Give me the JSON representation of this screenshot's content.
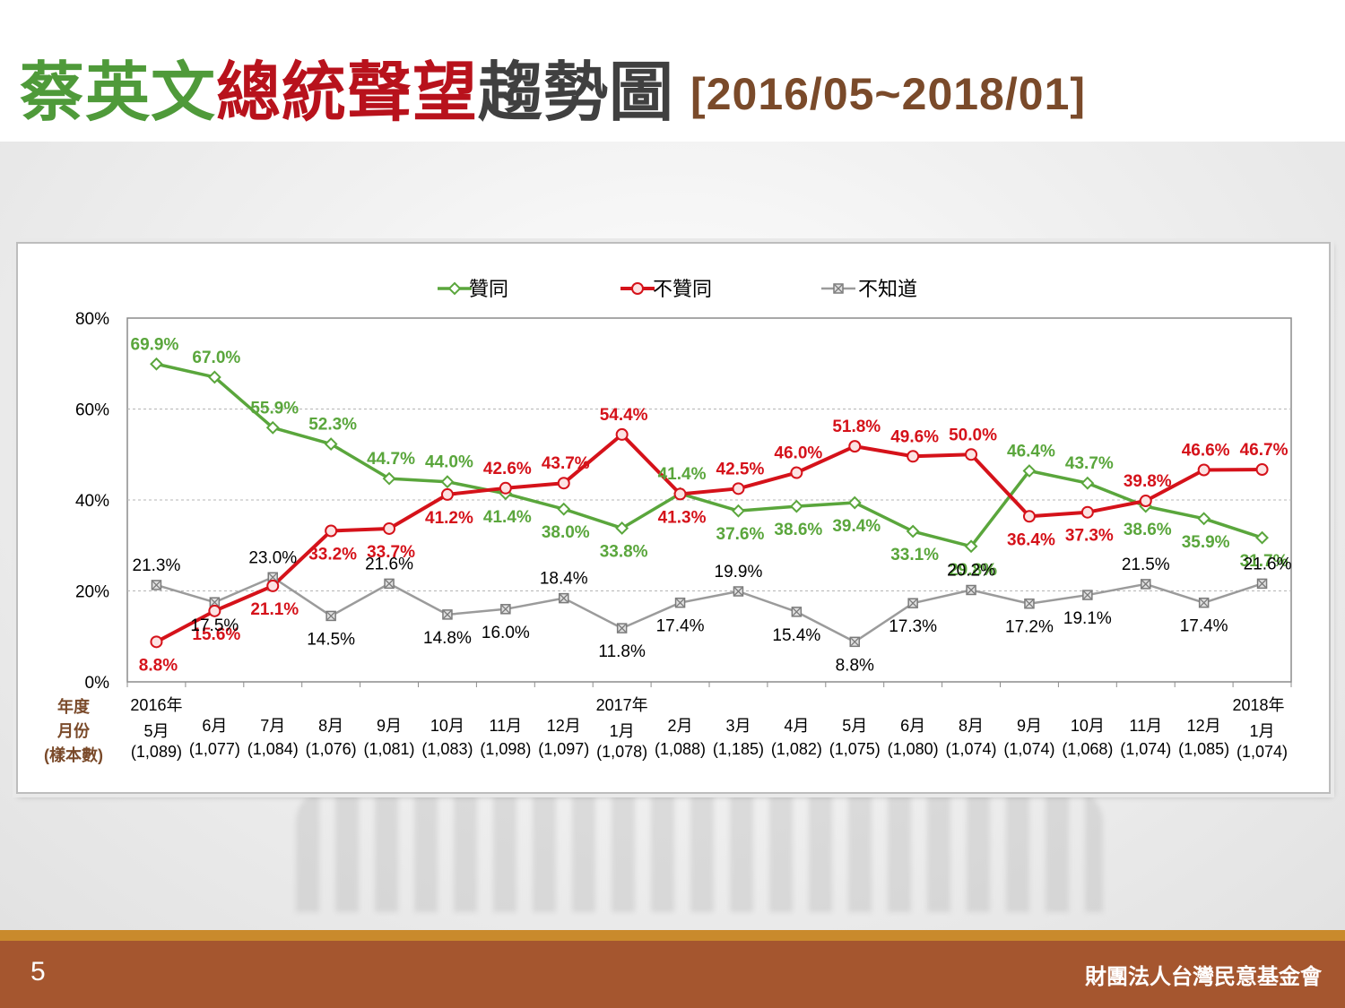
{
  "title": {
    "part1": "蔡英文",
    "part2": "總統聲望",
    "part3": "趨勢圖",
    "range": "[2016/05~2018/01]"
  },
  "footer": {
    "page": "5",
    "org": "財團法人台灣民意基金會"
  },
  "colors": {
    "approve": "#5aa63c",
    "disapprove": "#d5121a",
    "unknown": "#9b9b9b",
    "axis_label": "#7a4a2a"
  },
  "chart_data": {
    "type": "line",
    "ylim": [
      0,
      80
    ],
    "yticks": [
      "0%",
      "20%",
      "40%",
      "60%",
      "80%"
    ],
    "grid": true,
    "legend_position": "top",
    "row_labels": [
      "年度",
      "月份",
      "(樣本數)"
    ],
    "x_year_labels": [
      {
        "index": 0,
        "label": "2016年"
      },
      {
        "index": 8,
        "label": "2017年"
      },
      {
        "index": 19,
        "label": "2018年"
      }
    ],
    "months": [
      "5月",
      "6月",
      "7月",
      "8月",
      "9月",
      "10月",
      "11月",
      "12月",
      "1月",
      "2月",
      "3月",
      "4月",
      "5月",
      "6月",
      "8月",
      "9月",
      "10月",
      "11月",
      "12月",
      "1月"
    ],
    "samples": [
      "(1,089)",
      "(1,077)",
      "(1,084)",
      "(1,076)",
      "(1,081)",
      "(1,083)",
      "(1,098)",
      "(1,097)",
      "(1,078)",
      "(1,088)",
      "(1,185)",
      "(1,082)",
      "(1,075)",
      "(1,080)",
      "(1,074)",
      "(1,074)",
      "(1,068)",
      "(1,074)",
      "(1,085)",
      "(1,074)"
    ],
    "series": [
      {
        "name": "贊同",
        "values": [
          69.9,
          67.0,
          55.9,
          52.3,
          44.7,
          44.0,
          41.4,
          38.0,
          33.8,
          41.4,
          37.6,
          38.6,
          39.4,
          33.1,
          29.8,
          46.4,
          43.7,
          38.6,
          35.9,
          31.7
        ]
      },
      {
        "name": "不贊同",
        "values": [
          8.8,
          15.6,
          21.1,
          33.2,
          33.7,
          41.2,
          42.6,
          43.7,
          54.4,
          41.3,
          42.5,
          46.0,
          51.8,
          49.6,
          50.0,
          36.4,
          37.3,
          39.8,
          46.6,
          46.7
        ]
      },
      {
        "name": "不知道",
        "values": [
          21.3,
          17.5,
          23.0,
          14.5,
          21.6,
          14.8,
          16.0,
          18.4,
          11.8,
          17.4,
          19.9,
          15.4,
          8.8,
          17.3,
          20.2,
          17.2,
          19.1,
          21.5,
          17.4,
          21.6
        ]
      }
    ]
  }
}
